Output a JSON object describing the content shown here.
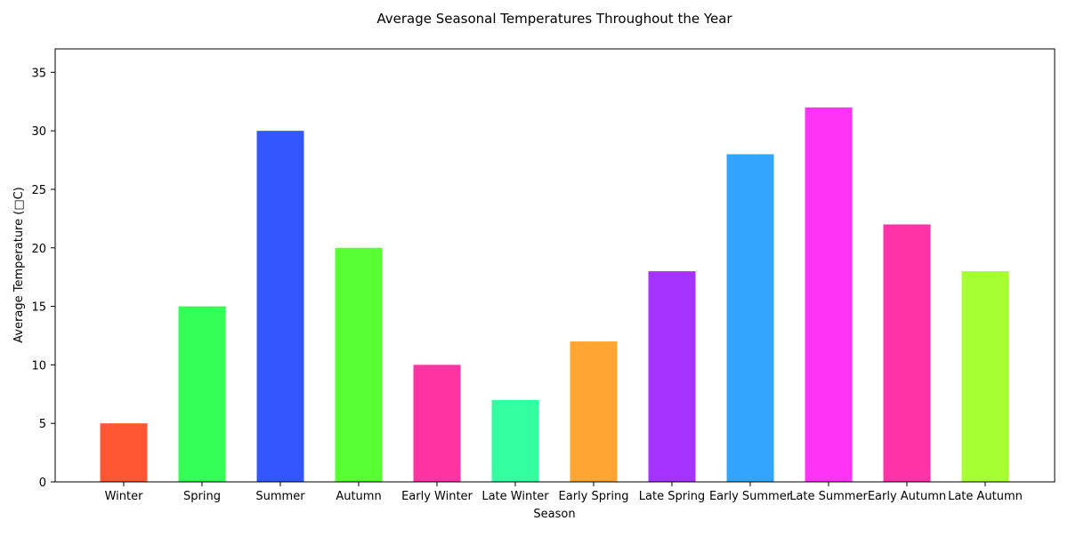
{
  "chart_data": {
    "type": "bar",
    "title": "Average Seasonal Temperatures Throughout the Year",
    "xlabel": "Season",
    "ylabel": "Average Temperature (□C)",
    "categories": [
      "Winter",
      "Spring",
      "Summer",
      "Autumn",
      "Early Winter",
      "Late Winter",
      "Early Spring",
      "Late Spring",
      "Early Summer",
      "Late Summer",
      "Early Autumn",
      "Late Autumn"
    ],
    "values": [
      5,
      15,
      30,
      20,
      10,
      7,
      12,
      18,
      28,
      32,
      22,
      18
    ],
    "colors": [
      "#ff5733",
      "#33ff57",
      "#3357ff",
      "#57ff33",
      "#ff33a1",
      "#33ffa1",
      "#ffa533",
      "#a533ff",
      "#33a5ff",
      "#ff33f6",
      "#ff33a5",
      "#a5ff33"
    ],
    "ylim": [
      0,
      37
    ],
    "yticks": [
      0,
      5,
      10,
      15,
      20,
      25,
      30,
      35
    ],
    "grid": false,
    "legend": "none"
  }
}
